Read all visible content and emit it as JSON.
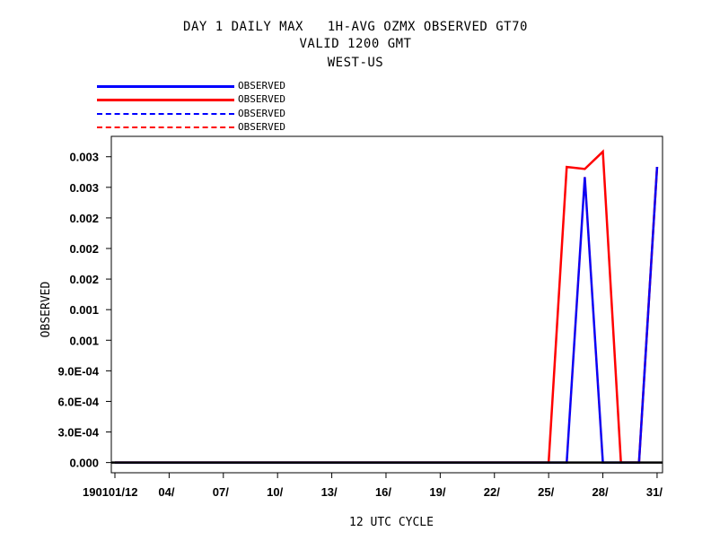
{
  "chart_data": {
    "type": "line",
    "title_lines": [
      "DAY 1 DAILY MAX   1H-AVG OZMX OBSERVED GT70",
      "VALID 1200 GMT",
      "WEST-US"
    ],
    "xlabel": "12 UTC CYCLE",
    "ylabel": "OBSERVED",
    "x_tick_values": [
      1,
      4,
      7,
      10,
      13,
      16,
      19,
      22,
      25,
      28,
      31
    ],
    "x_tick_labels": [
      "190101/12",
      "04/",
      "07/",
      "10/",
      "13/",
      "16/",
      "19/",
      "22/",
      "25/",
      "28/",
      "31/"
    ],
    "xlim": [
      1,
      31.5
    ],
    "y_tick_values": [
      0,
      0.0003,
      0.0006,
      0.0009,
      0.0012,
      0.0015,
      0.0018,
      0.0021,
      0.0024,
      0.0027,
      0.003
    ],
    "y_tick_labels": [
      "0.000",
      "3.0E-04",
      "6.0E-04",
      "9.0E-04",
      "0.001",
      "0.001",
      "0.002",
      "0.002",
      "0.002",
      "0.003",
      "0.003"
    ],
    "ylim": [
      -0.0001,
      0.0032
    ],
    "grid": false,
    "legend_position": "top-left",
    "series": [
      {
        "name": "OBSERVED",
        "color": "#0000ff",
        "dash": "solid",
        "x": [
          1,
          2,
          3,
          4,
          5,
          6,
          7,
          8,
          9,
          10,
          11,
          12,
          13,
          14,
          15,
          16,
          17,
          18,
          19,
          20,
          21,
          22,
          23,
          24,
          25,
          26,
          27,
          28,
          29,
          30,
          31
        ],
        "values": [
          0,
          0,
          0,
          0,
          0,
          0,
          0,
          0,
          0,
          0,
          0,
          0,
          0,
          0,
          0,
          0,
          0,
          0,
          0,
          0,
          0,
          0,
          0,
          0,
          0,
          0,
          0.0028,
          0,
          0,
          0,
          0.0029
        ]
      },
      {
        "name": "OBSERVED",
        "color": "#ff0000",
        "dash": "solid",
        "x": [
          1,
          2,
          3,
          4,
          5,
          6,
          7,
          8,
          9,
          10,
          11,
          12,
          13,
          14,
          15,
          16,
          17,
          18,
          19,
          20,
          21,
          22,
          23,
          24,
          25,
          26,
          27,
          28,
          29,
          30,
          31
        ],
        "values": [
          0,
          0,
          0,
          0,
          0,
          0,
          0,
          0,
          0,
          0,
          0,
          0,
          0,
          0,
          0,
          0,
          0,
          0,
          0,
          0,
          0,
          0,
          0,
          0,
          0,
          0.0029,
          0.00288,
          0.00305,
          0,
          0,
          0.0029
        ]
      },
      {
        "name": "OBSERVED",
        "color": "#0000ff",
        "dash": "dashed",
        "x": [
          1,
          2,
          3,
          4,
          5,
          6,
          7,
          8,
          9,
          10,
          11,
          12,
          13,
          14,
          15,
          16,
          17,
          18,
          19,
          20,
          21,
          22,
          23,
          24,
          25,
          26,
          27,
          28,
          29,
          30,
          31
        ],
        "values": [
          0,
          0,
          0,
          0,
          0,
          0,
          0,
          0,
          0,
          0,
          0,
          0,
          0,
          0,
          0,
          0,
          0,
          0,
          0,
          0,
          0,
          0,
          0,
          0,
          0,
          0,
          0.0028,
          0,
          0,
          0,
          0.0029
        ]
      },
      {
        "name": "OBSERVED",
        "color": "#ff0000",
        "dash": "dashed",
        "x": [
          1,
          2,
          3,
          4,
          5,
          6,
          7,
          8,
          9,
          10,
          11,
          12,
          13,
          14,
          15,
          16,
          17,
          18,
          19,
          20,
          21,
          22,
          23,
          24,
          25,
          26,
          27,
          28,
          29,
          30,
          31
        ],
        "values": [
          0,
          0,
          0,
          0,
          0,
          0,
          0,
          0,
          0,
          0,
          0,
          0,
          0,
          0,
          0,
          0,
          0,
          0,
          0,
          0,
          0,
          0,
          0,
          0,
          0,
          0,
          0.0028,
          0,
          0,
          0,
          0.0029
        ]
      }
    ]
  }
}
